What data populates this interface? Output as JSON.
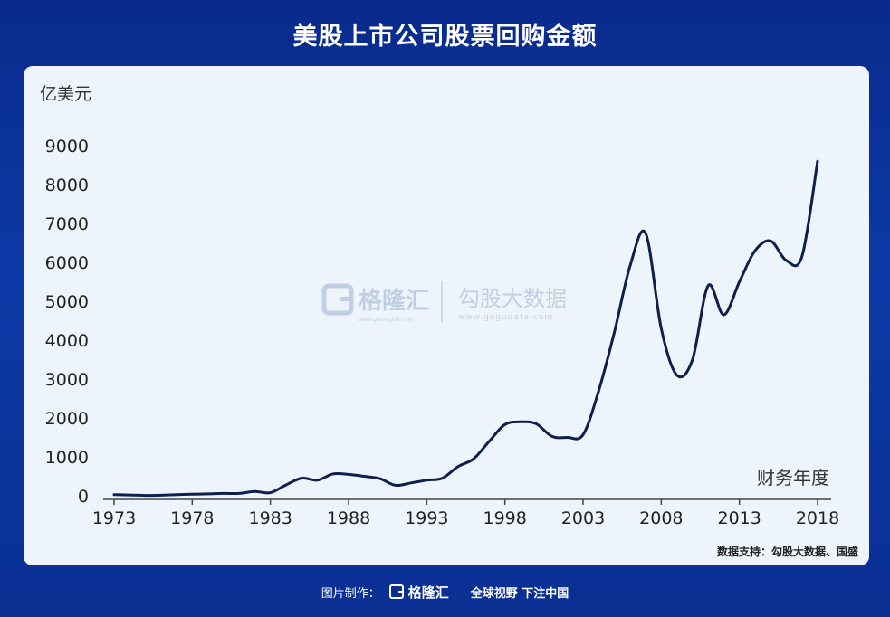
{
  "header": {
    "title": "美股上市公司股票回购金额"
  },
  "chart_data": {
    "type": "line",
    "yunit": "亿美元",
    "xlabel": "财务年度",
    "ylim": [
      0,
      9000
    ],
    "xlim": [
      1973,
      2018
    ],
    "yticks": [
      0,
      1000,
      2000,
      3000,
      4000,
      5000,
      6000,
      7000,
      8000,
      9000
    ],
    "xticks": [
      1973,
      1978,
      1983,
      1988,
      1993,
      1998,
      2003,
      2008,
      2013,
      2018
    ],
    "grid": false,
    "line_color": "#0d1f4a",
    "x": [
      1973,
      1974,
      1975,
      1976,
      1977,
      1978,
      1979,
      1980,
      1981,
      1982,
      1983,
      1984,
      1985,
      1986,
      1987,
      1988,
      1989,
      1990,
      1991,
      1992,
      1993,
      1994,
      1995,
      1996,
      1997,
      1998,
      1999,
      2000,
      2001,
      2002,
      2003,
      2004,
      2005,
      2006,
      2007,
      2008,
      2009,
      2010,
      2011,
      2012,
      2013,
      2014,
      2015,
      2016,
      2017,
      2018
    ],
    "values": [
      30,
      20,
      10,
      15,
      30,
      40,
      50,
      60,
      60,
      110,
      80,
      280,
      450,
      400,
      560,
      550,
      500,
      440,
      270,
      330,
      400,
      450,
      750,
      950,
      1400,
      1830,
      1900,
      1850,
      1530,
      1500,
      1570,
      2700,
      4200,
      5900,
      6750,
      4300,
      3100,
      3500,
      5400,
      4650,
      5500,
      6300,
      6550,
      6050,
      6150,
      8600
    ]
  },
  "watermark": {
    "brand1": "格隆汇",
    "brand1_url": "www.gelonghui.com",
    "brand2": "勾股大数据",
    "brand2_url": "www.gogudata.com"
  },
  "source": "数据支持：勾股大数据、国盛",
  "footer": {
    "made_by": "图片制作：",
    "brand": "格隆汇",
    "slogan": "全球视野 下注中国"
  }
}
